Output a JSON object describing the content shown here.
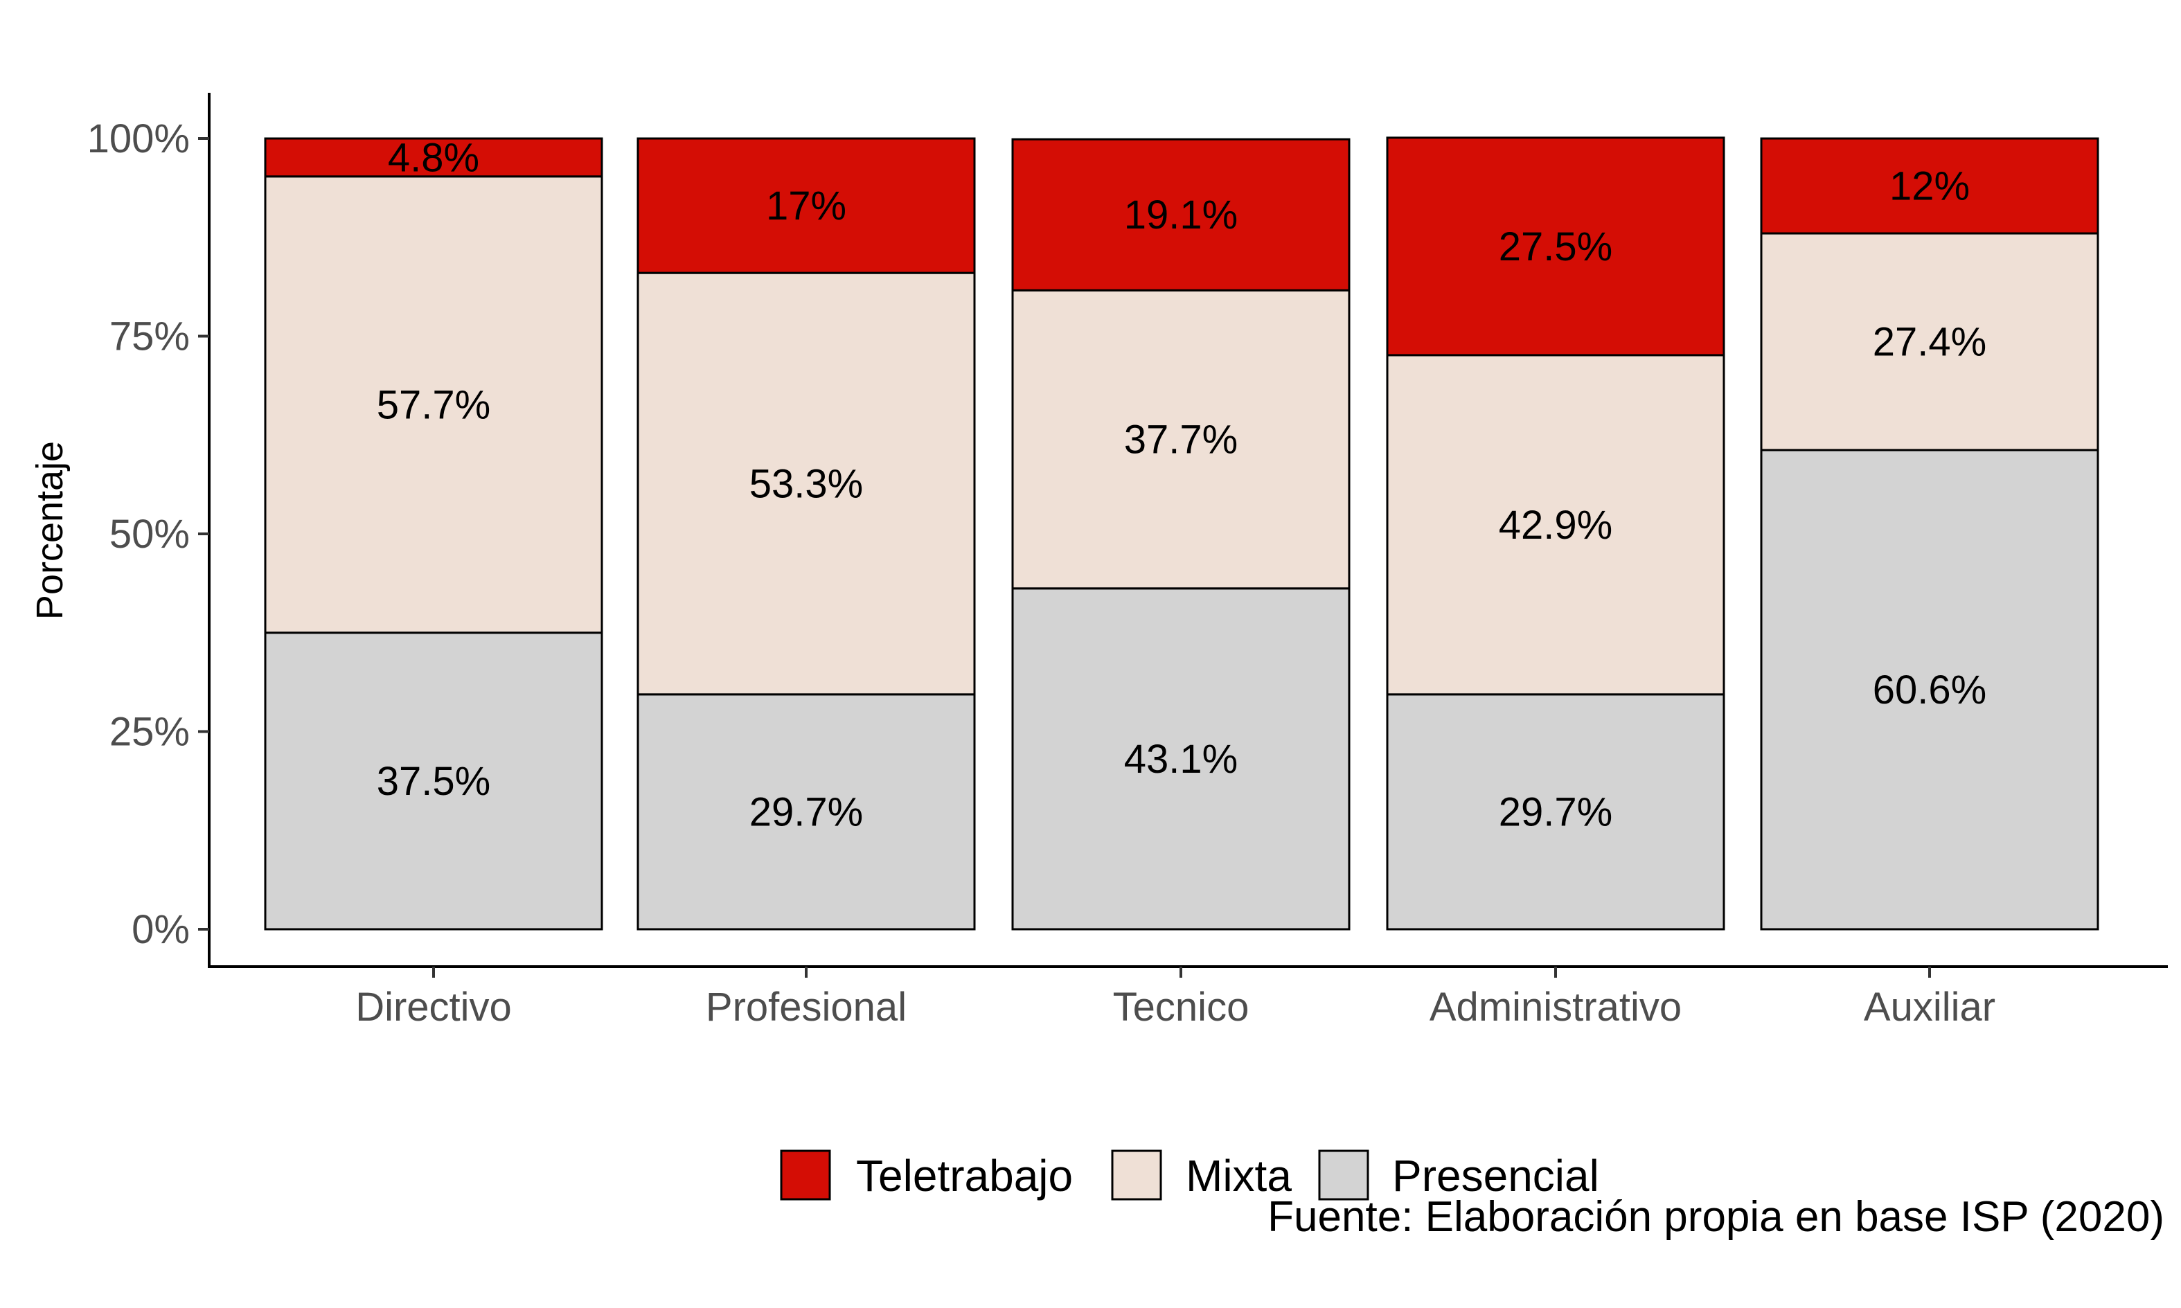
{
  "chart_data": {
    "type": "bar",
    "stacked": true,
    "title": "",
    "xlabel": "",
    "ylabel": "Porcentaje",
    "ylim": [
      0,
      100
    ],
    "yticks": [
      "0%",
      "25%",
      "50%",
      "75%",
      "100%"
    ],
    "ytick_values": [
      0,
      25,
      50,
      75,
      100
    ],
    "categories": [
      "Directivo",
      "Profesional",
      "Tecnico",
      "Administrativo",
      "Auxiliar"
    ],
    "series": [
      {
        "name": "Presencial",
        "color": "#d3d3d3",
        "values": [
          37.5,
          29.7,
          43.1,
          29.7,
          60.6
        ],
        "labels": [
          "37.5%",
          "29.7%",
          "43.1%",
          "29.7%",
          "60.6%"
        ]
      },
      {
        "name": "Mixta",
        "color": "#efe0d6",
        "values": [
          57.7,
          53.3,
          37.7,
          42.9,
          27.4
        ],
        "labels": [
          "57.7%",
          "53.3%",
          "37.7%",
          "42.9%",
          "27.4%"
        ]
      },
      {
        "name": "Teletrabajo",
        "color": "#d40d05",
        "values": [
          4.8,
          17.0,
          19.1,
          27.5,
          12.0
        ],
        "labels": [
          "4.8%",
          "17%",
          "19.1%",
          "27.5%",
          "12%"
        ]
      }
    ],
    "legend": {
      "position": "bottom",
      "order": [
        "Teletrabajo",
        "Mixta",
        "Presencial"
      ]
    },
    "grid": false,
    "caption": "Fuente: Elaboración propia en base ISP (2020)"
  }
}
